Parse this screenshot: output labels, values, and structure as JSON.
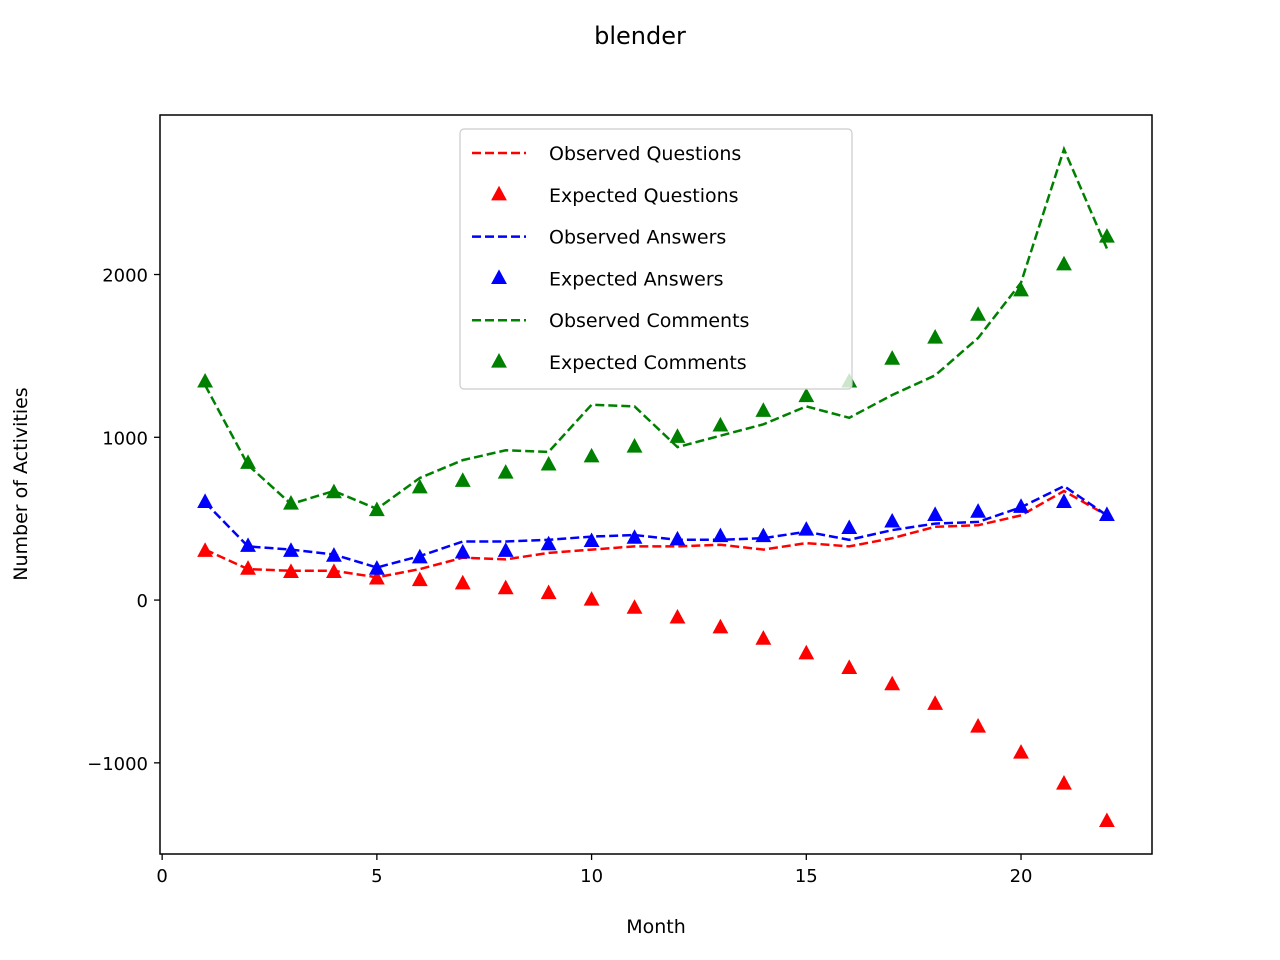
{
  "chart_data": {
    "type": "line",
    "title": "blender",
    "xlabel": "Month",
    "ylabel": "Number of Activities",
    "xlim": [
      -0.05,
      23.05
    ],
    "ylim": [
      -1560,
      2980
    ],
    "xticks": [
      0,
      5,
      10,
      15,
      20
    ],
    "yticks": [
      -1000,
      0,
      1000,
      2000
    ],
    "ytick_labels": [
      "−1000",
      "0",
      "1000",
      "2000"
    ],
    "grid": false,
    "legend_position": "upper center",
    "x": [
      1,
      2,
      3,
      4,
      5,
      6,
      7,
      8,
      9,
      10,
      11,
      12,
      13,
      14,
      15,
      16,
      17,
      18,
      19,
      20,
      21,
      22
    ],
    "series": [
      {
        "name": "Observed Questions",
        "style": "dashed-line",
        "color": "#ff0000",
        "values": [
          310,
          190,
          180,
          180,
          140,
          190,
          260,
          250,
          290,
          310,
          330,
          330,
          340,
          310,
          350,
          330,
          380,
          450,
          460,
          520,
          670,
          520
        ]
      },
      {
        "name": "Expected Questions",
        "style": "triangle-marker",
        "color": "#ff0000",
        "values": [
          300,
          190,
          170,
          170,
          130,
          120,
          100,
          70,
          40,
          0,
          -50,
          -110,
          -170,
          -240,
          -330,
          -420,
          -520,
          -640,
          -780,
          -940,
          -1130,
          -1360
        ]
      },
      {
        "name": "Observed Answers",
        "style": "dashed-line",
        "color": "#0000ff",
        "values": [
          600,
          330,
          310,
          280,
          200,
          270,
          360,
          360,
          370,
          390,
          400,
          370,
          370,
          380,
          420,
          370,
          430,
          470,
          480,
          570,
          700,
          520
        ]
      },
      {
        "name": "Expected Answers",
        "style": "triangle-marker",
        "color": "#0000ff",
        "values": [
          600,
          330,
          300,
          270,
          190,
          260,
          290,
          300,
          340,
          360,
          380,
          370,
          390,
          390,
          430,
          440,
          480,
          520,
          540,
          570,
          600,
          520
        ]
      },
      {
        "name": "Observed Comments",
        "style": "dashed-line",
        "color": "#008000",
        "values": [
          1320,
          830,
          590,
          670,
          560,
          750,
          860,
          920,
          910,
          1200,
          1190,
          940,
          1010,
          1080,
          1190,
          1120,
          1260,
          1380,
          1610,
          1950,
          2770,
          2160
        ]
      },
      {
        "name": "Expected Comments",
        "style": "triangle-marker",
        "color": "#008000",
        "values": [
          1340,
          840,
          590,
          660,
          550,
          690,
          730,
          780,
          830,
          880,
          940,
          1000,
          1070,
          1160,
          1250,
          1340,
          1480,
          1610,
          1750,
          1900,
          2060,
          2230
        ]
      }
    ]
  }
}
